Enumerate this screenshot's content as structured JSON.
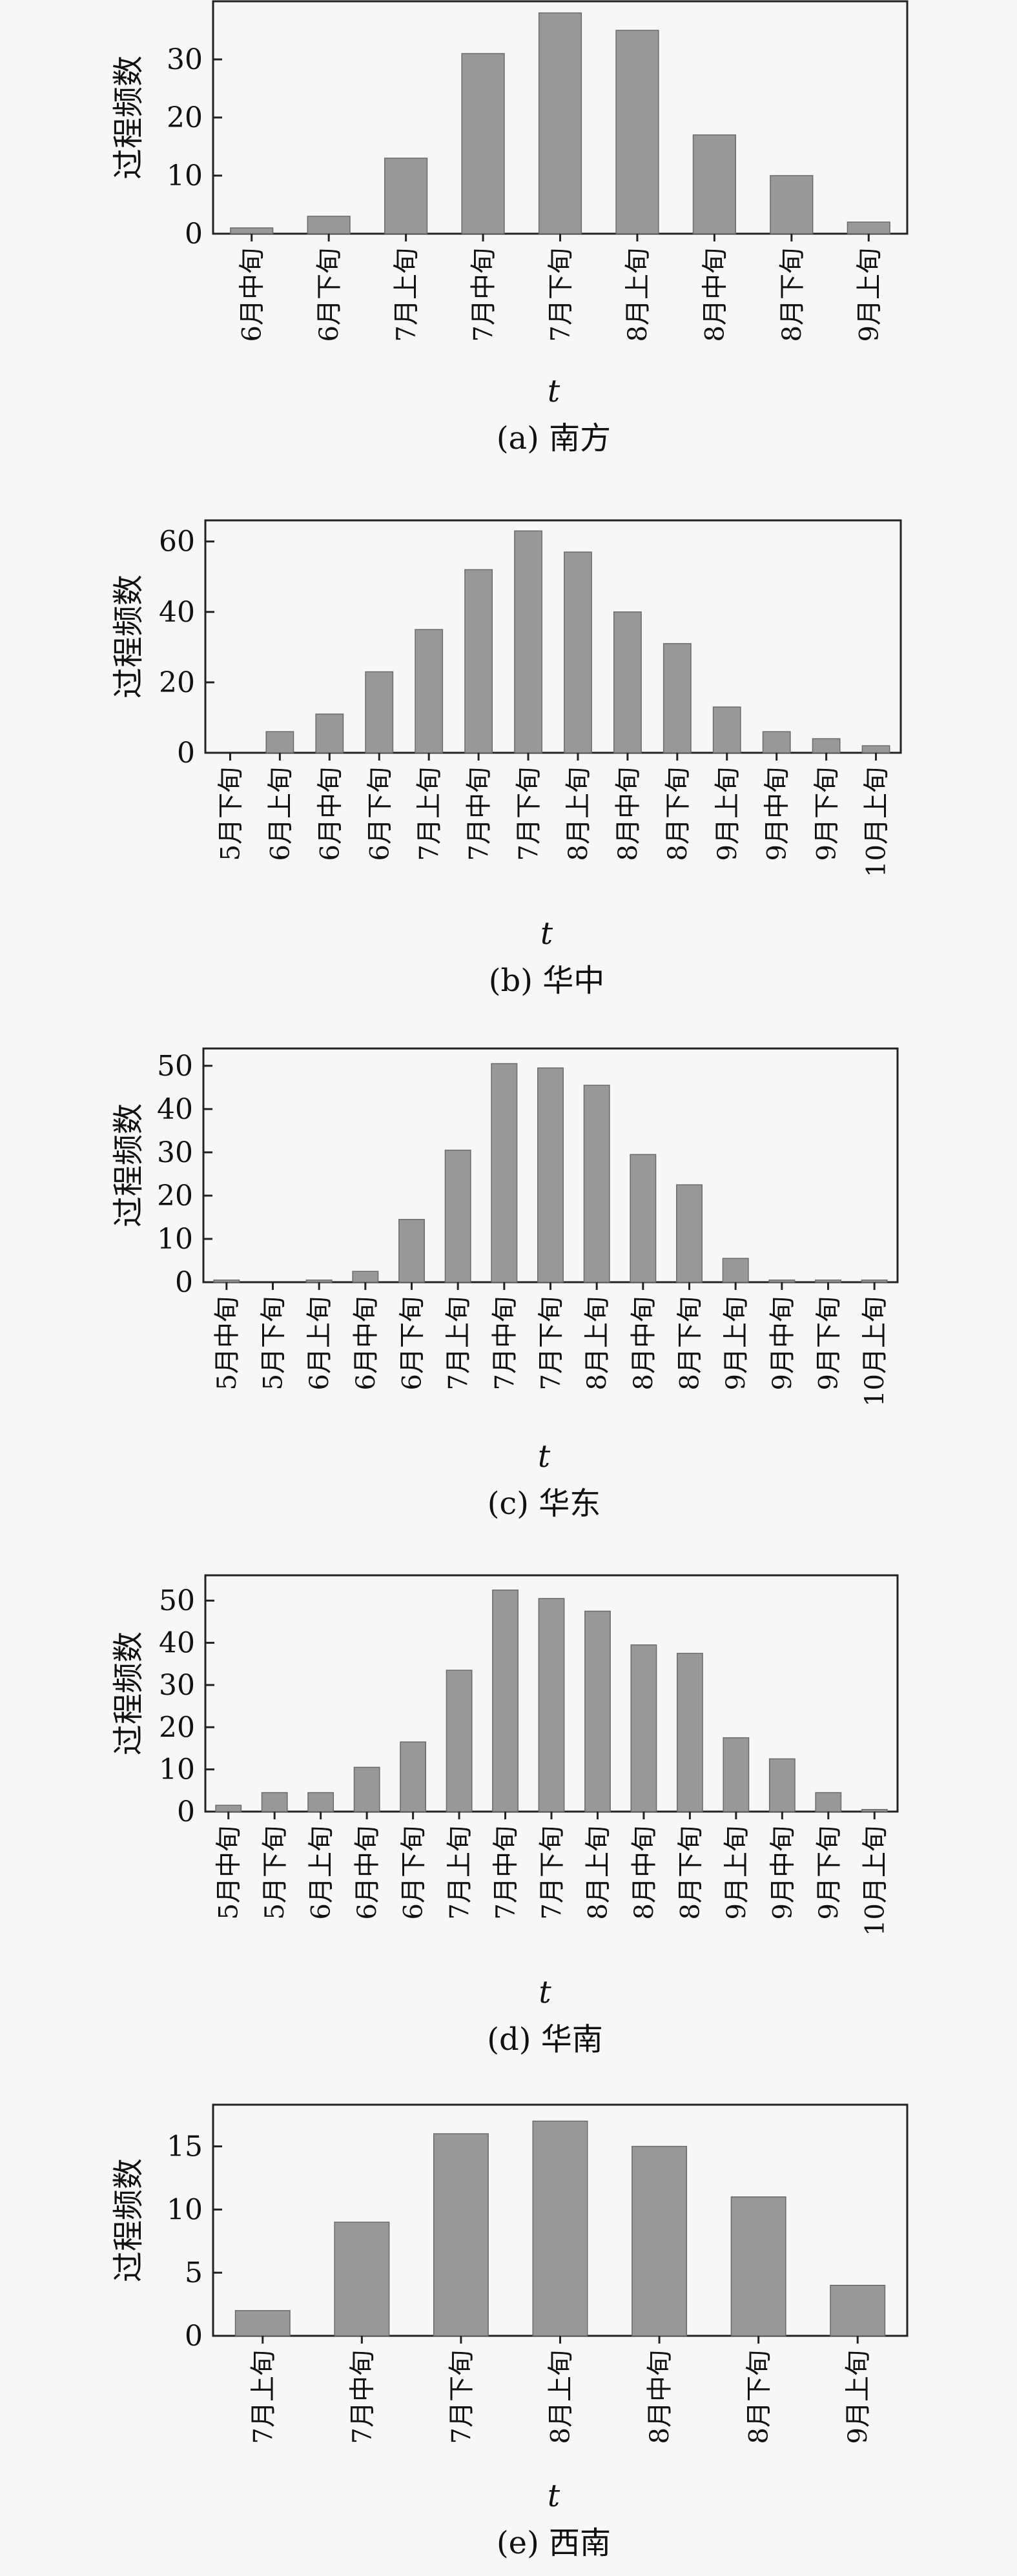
{
  "chart_data": [
    {
      "type": "bar",
      "caption": "(a) 南方",
      "xlabel": "t",
      "ylabel": "过程频数",
      "categories": [
        "6月中旬",
        "6月下旬",
        "7月上旬",
        "7月中旬",
        "7月下旬",
        "8月上旬",
        "8月中旬",
        "8月下旬",
        "9月上旬"
      ],
      "values": [
        1,
        3,
        13,
        31,
        38,
        35,
        17,
        10,
        2
      ],
      "ylim": [
        0,
        40
      ],
      "yticks": [
        0,
        10,
        20,
        30
      ],
      "grid": false,
      "legend": null
    },
    {
      "type": "bar",
      "caption": "(b) 华中",
      "xlabel": "t",
      "ylabel": "过程频数",
      "categories": [
        "5月下旬",
        "6月上旬",
        "6月中旬",
        "6月下旬",
        "7月上旬",
        "7月中旬",
        "7月下旬",
        "8月上旬",
        "8月中旬",
        "8月下旬",
        "9月上旬",
        "9月中旬",
        "9月下旬",
        "10月上旬"
      ],
      "values": [
        0,
        6,
        11,
        23,
        35,
        52,
        63,
        57,
        40,
        31,
        13,
        6,
        4,
        2
      ],
      "ylim": [
        0,
        66
      ],
      "yticks": [
        0,
        20,
        40,
        60
      ],
      "grid": false,
      "legend": null
    },
    {
      "type": "bar",
      "caption": "(c) 华东",
      "xlabel": "t",
      "ylabel": "过程频数",
      "categories": [
        "5月中旬",
        "5月下旬",
        "6月上旬",
        "6月中旬",
        "6月下旬",
        "7月上旬",
        "7月中旬",
        "7月下旬",
        "8月上旬",
        "8月中旬",
        "8月下旬",
        "9月上旬",
        "9月中旬",
        "9月下旬",
        "10月上旬"
      ],
      "values": [
        0.5,
        0,
        0.5,
        2.5,
        14.5,
        30.5,
        50.5,
        49.5,
        45.5,
        29.5,
        22.5,
        5.5,
        0.5,
        0.5,
        0.5
      ],
      "ylim": [
        0,
        54
      ],
      "yticks": [
        0,
        10,
        20,
        30,
        40,
        50
      ],
      "grid": false,
      "legend": null
    },
    {
      "type": "bar",
      "caption": "(d) 华南",
      "xlabel": "t",
      "ylabel": "过程频数",
      "categories": [
        "5月中旬",
        "5月下旬",
        "6月上旬",
        "6月中旬",
        "6月下旬",
        "7月上旬",
        "7月中旬",
        "7月下旬",
        "8月上旬",
        "8月中旬",
        "8月下旬",
        "9月上旬",
        "9月中旬",
        "9月下旬",
        "10月上旬"
      ],
      "values": [
        1.5,
        4.5,
        4.5,
        10.5,
        16.5,
        33.5,
        52.5,
        50.5,
        47.5,
        39.5,
        37.5,
        17.5,
        12.5,
        4.5,
        0.5
      ],
      "ylim": [
        0,
        56
      ],
      "yticks": [
        0,
        10,
        20,
        30,
        40,
        50
      ],
      "grid": false,
      "legend": null
    },
    {
      "type": "bar",
      "caption": "(e) 西南",
      "xlabel": "t",
      "ylabel": "过程频数",
      "categories": [
        "7月上旬",
        "7月中旬",
        "7月下旬",
        "8月上旬",
        "8月中旬",
        "8月下旬",
        "9月上旬"
      ],
      "values": [
        2,
        9,
        16,
        17,
        15,
        11,
        4
      ],
      "ylim": [
        0,
        18.3
      ],
      "yticks": [
        0,
        5,
        10,
        15
      ],
      "grid": false,
      "legend": null
    }
  ]
}
